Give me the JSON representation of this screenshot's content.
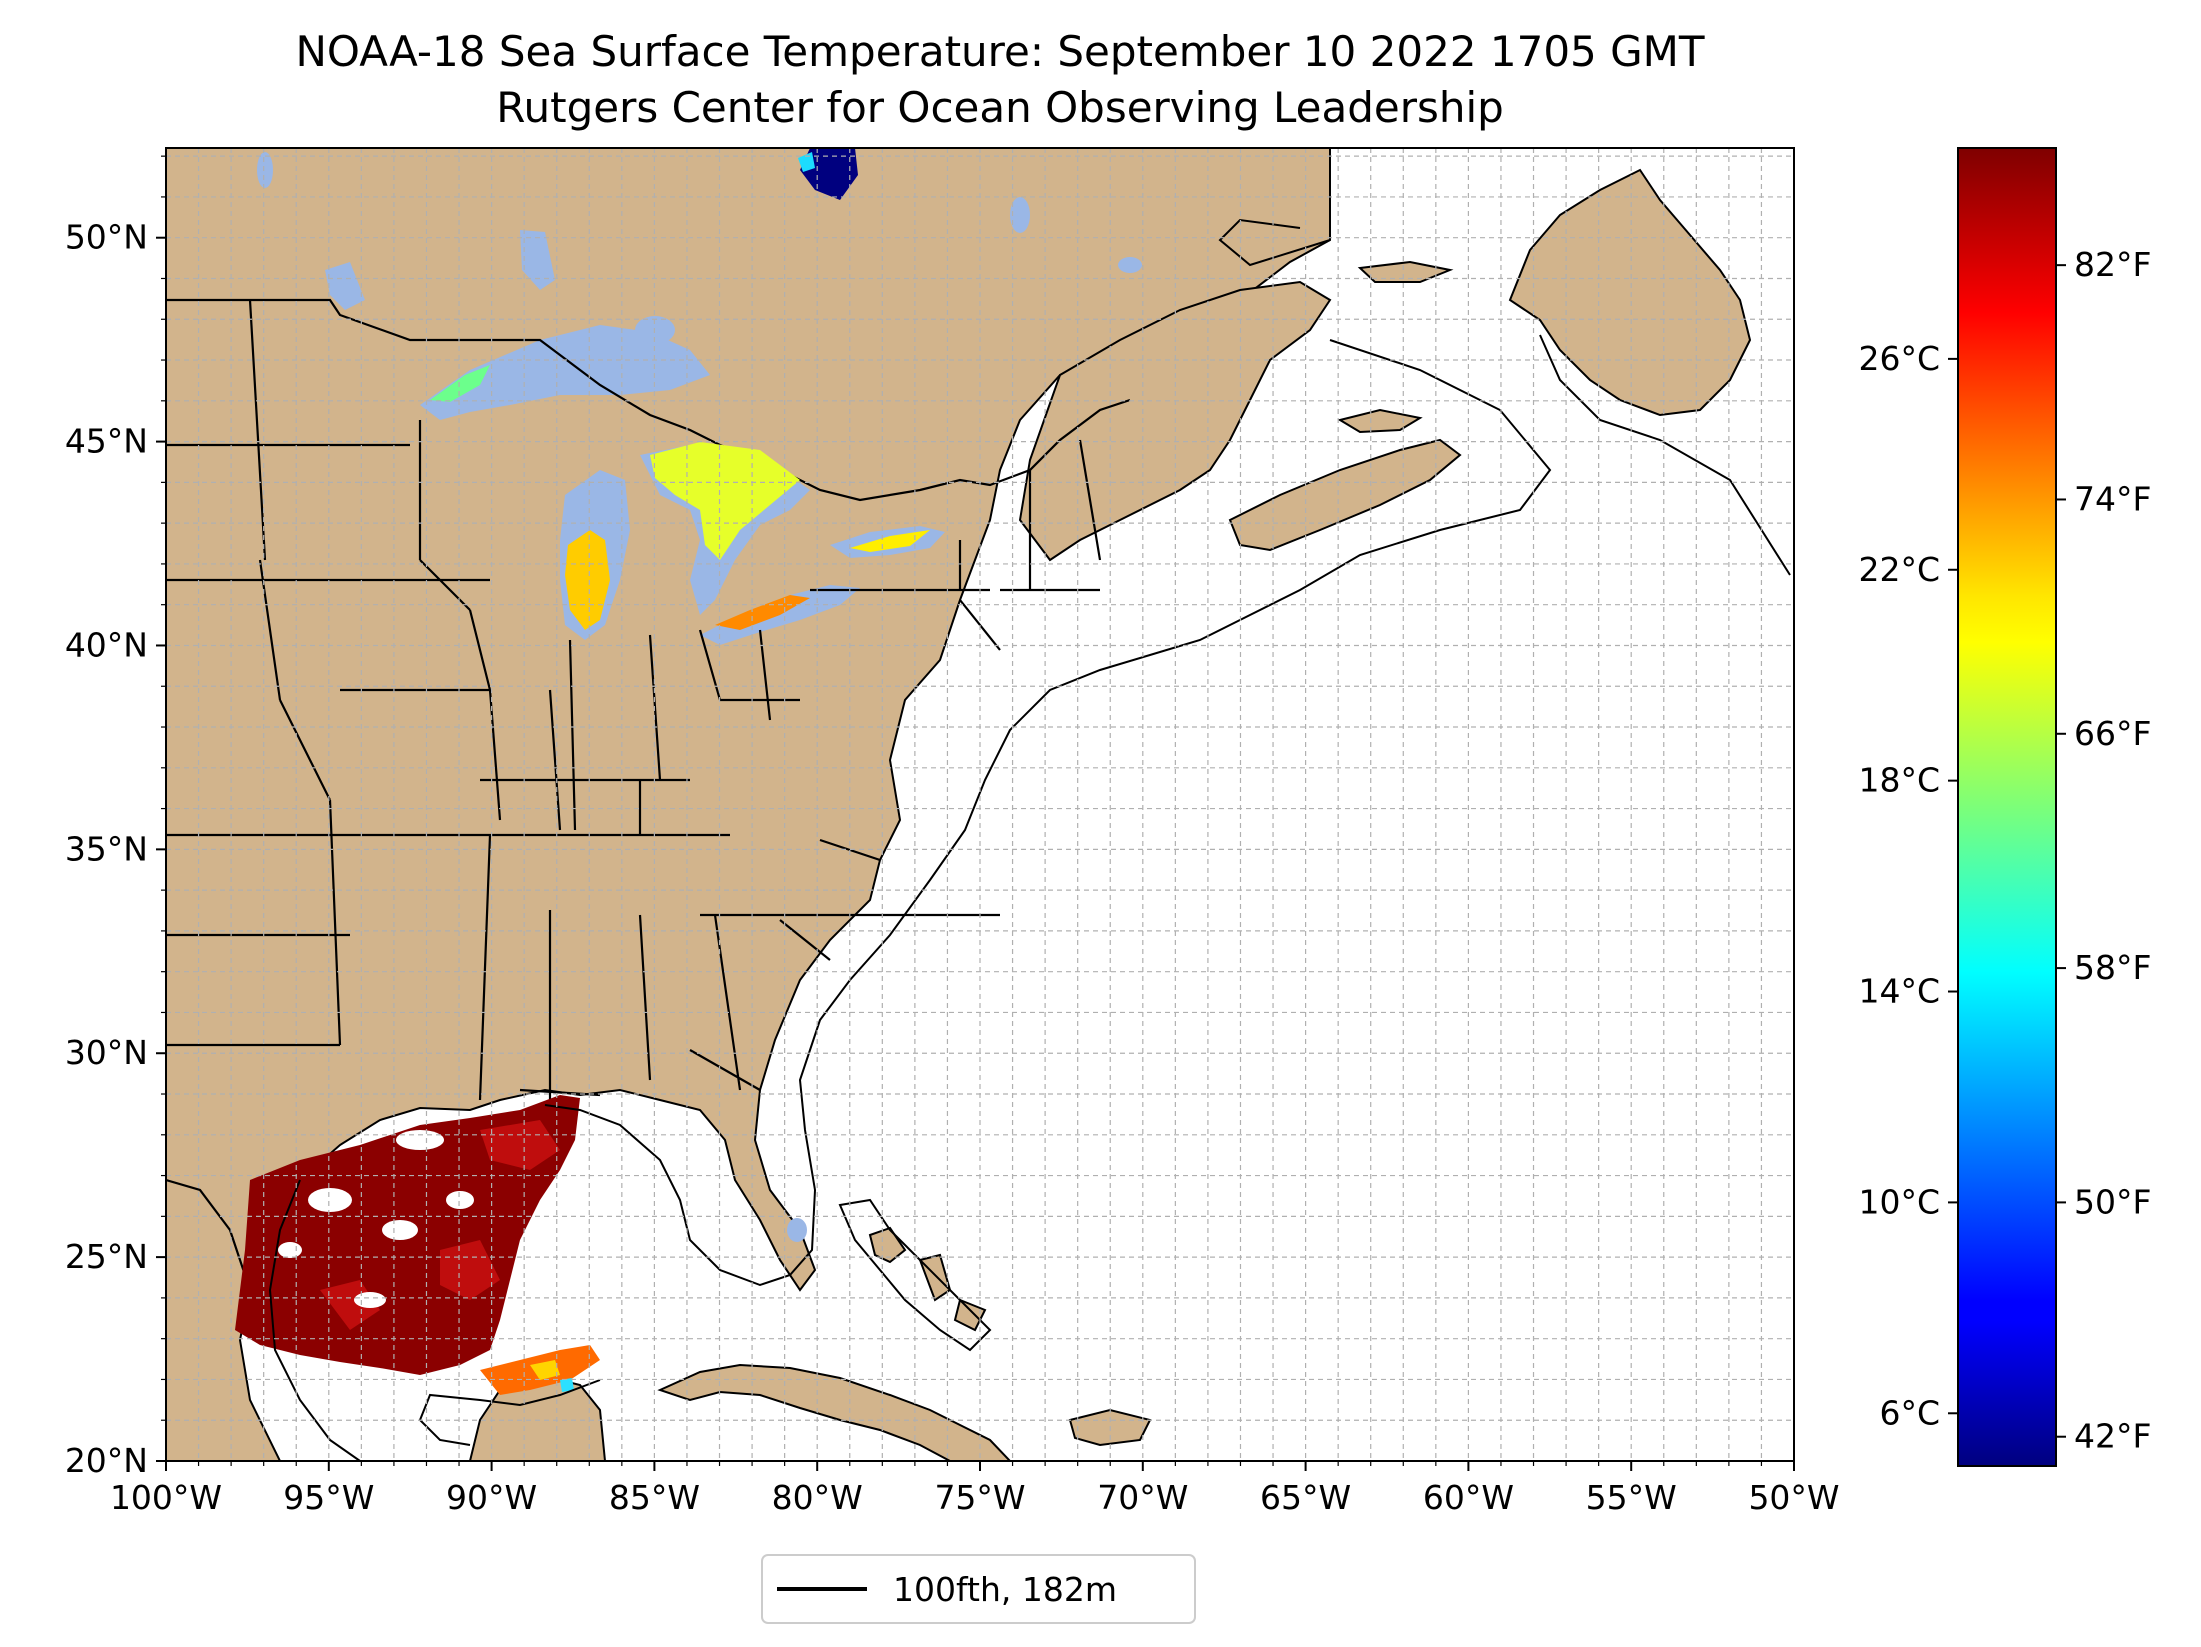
{
  "title": {
    "line1": "NOAA-18 Sea Surface Temperature: September 10 2022 1705 GMT",
    "line2": "Rutgers Center for Ocean Observing Leadership"
  },
  "map": {
    "extent": {
      "lon": [
        -100,
        -50
      ],
      "lat": [
        20,
        52.2
      ]
    },
    "lon_ticks": [
      {
        "value": -100,
        "label": "100°W"
      },
      {
        "value": -95,
        "label": "95°W"
      },
      {
        "value": -90,
        "label": "90°W"
      },
      {
        "value": -85,
        "label": "85°W"
      },
      {
        "value": -80,
        "label": "80°W"
      },
      {
        "value": -75,
        "label": "75°W"
      },
      {
        "value": -70,
        "label": "70°W"
      },
      {
        "value": -65,
        "label": "65°W"
      },
      {
        "value": -60,
        "label": "60°W"
      },
      {
        "value": -55,
        "label": "55°W"
      },
      {
        "value": -50,
        "label": "50°W"
      }
    ],
    "lat_ticks": [
      {
        "value": 20,
        "label": "20°N"
      },
      {
        "value": 25,
        "label": "25°N"
      },
      {
        "value": 30,
        "label": "30°N"
      },
      {
        "value": 35,
        "label": "35°N"
      },
      {
        "value": 40,
        "label": "40°N"
      },
      {
        "value": 45,
        "label": "45°N"
      },
      {
        "value": 50,
        "label": "50°N"
      }
    ],
    "grid": true,
    "colors": {
      "land": "#d2b48c",
      "lakes": "#9ab7e6",
      "ocean": "#ffffff",
      "grid": "#b0b0b0",
      "border": "#000000"
    }
  },
  "colorbar": {
    "colormap": "jet",
    "range_c": [
      5,
      30
    ],
    "celsius_ticks": [
      {
        "value": 6,
        "label": "6°C"
      },
      {
        "value": 10,
        "label": "10°C"
      },
      {
        "value": 14,
        "label": "14°C"
      },
      {
        "value": 18,
        "label": "18°C"
      },
      {
        "value": 22,
        "label": "22°C"
      },
      {
        "value": 26,
        "label": "26°C"
      }
    ],
    "fahrenheit_ticks": [
      {
        "value": 42,
        "label": "42°F"
      },
      {
        "value": 50,
        "label": "50°F"
      },
      {
        "value": 58,
        "label": "58°F"
      },
      {
        "value": 66,
        "label": "66°F"
      },
      {
        "value": 74,
        "label": "74°F"
      },
      {
        "value": 82,
        "label": "82°F"
      }
    ]
  },
  "legend": {
    "label": "100fth, 182m",
    "placement": "bottom-center"
  }
}
